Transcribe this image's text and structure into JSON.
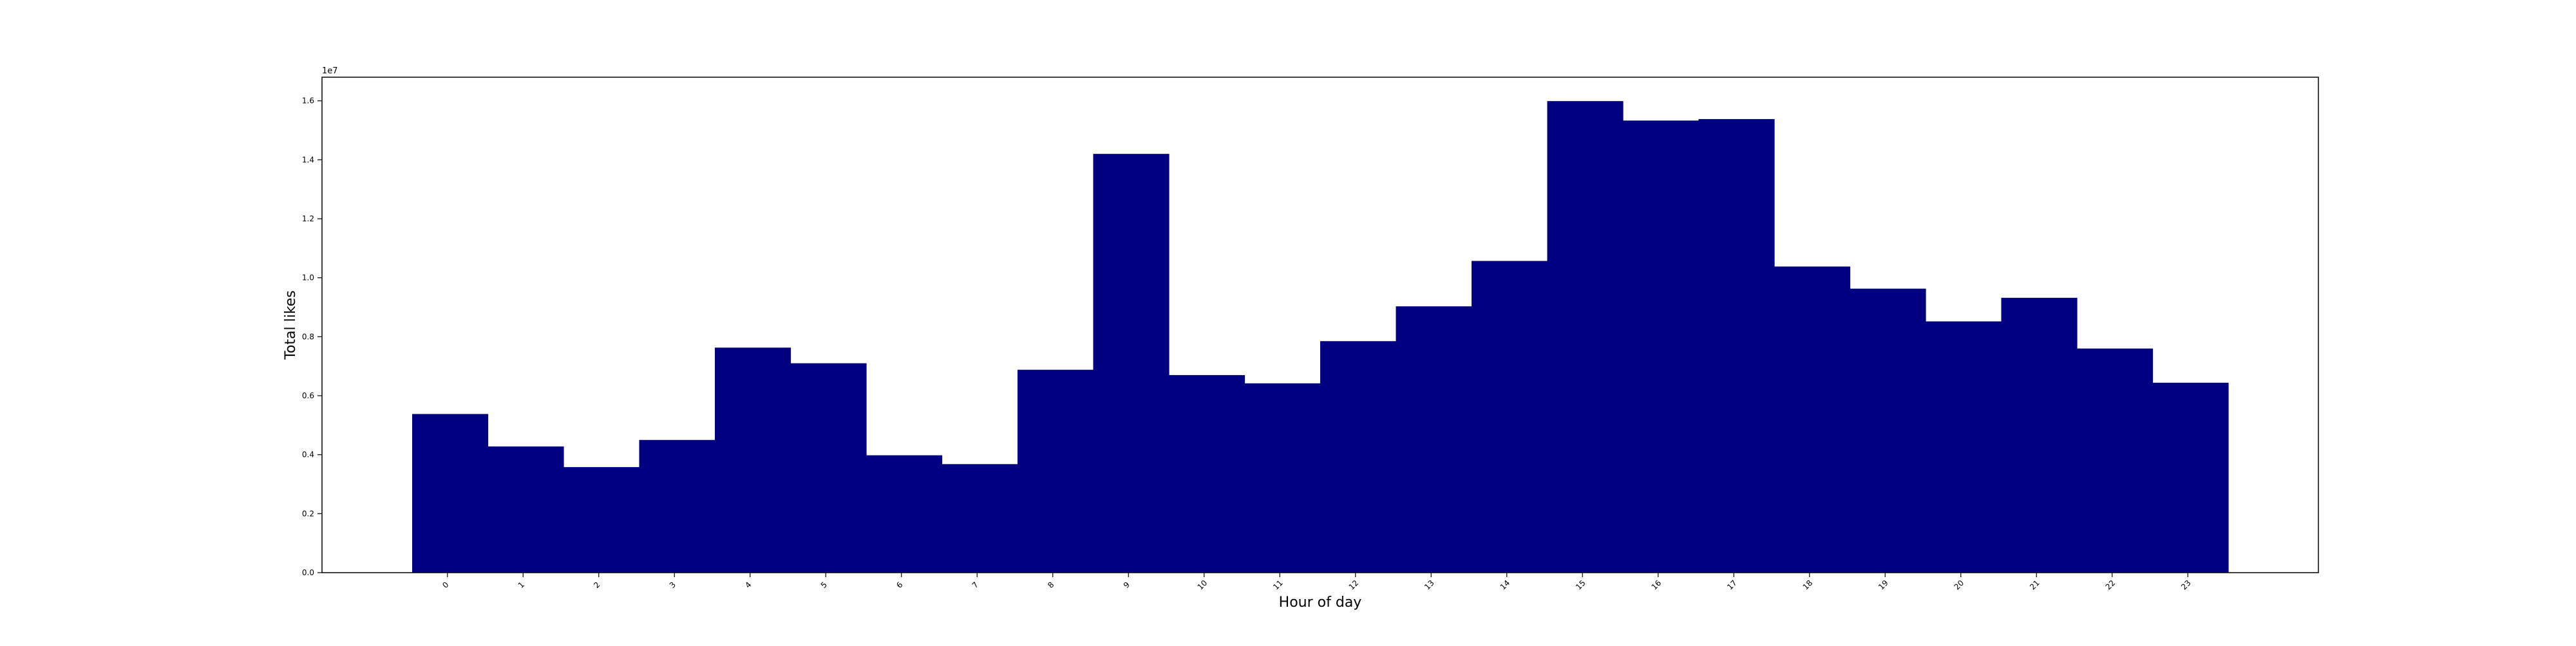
{
  "chart_data": {
    "type": "bar",
    "categories": [
      "0",
      "1",
      "2",
      "3",
      "4",
      "5",
      "6",
      "7",
      "8",
      "9",
      "10",
      "11",
      "12",
      "13",
      "14",
      "15",
      "16",
      "17",
      "18",
      "19",
      "20",
      "21",
      "22",
      "23"
    ],
    "values": [
      5380000,
      4280000,
      3580000,
      4500000,
      7630000,
      7100000,
      3980000,
      3680000,
      6880000,
      14200000,
      6700000,
      6420000,
      7850000,
      9030000,
      10570000,
      15990000,
      15330000,
      15380000,
      10380000,
      9630000,
      8520000,
      9320000,
      7600000,
      6440000
    ],
    "xlabel": "Hour of day",
    "ylabel": "Total likes",
    "ylim": [
      0,
      16800000
    ],
    "yticks": [
      0,
      2000000,
      4000000,
      6000000,
      8000000,
      10000000,
      12000000,
      14000000,
      16000000
    ],
    "ytick_labels": [
      "0.0",
      "0.2",
      "0.4",
      "0.6",
      "0.8",
      "1.0",
      "1.2",
      "1.4",
      "1.6"
    ],
    "y_offset_label": "1e7",
    "bar_color": "#000080",
    "grid": false
  }
}
